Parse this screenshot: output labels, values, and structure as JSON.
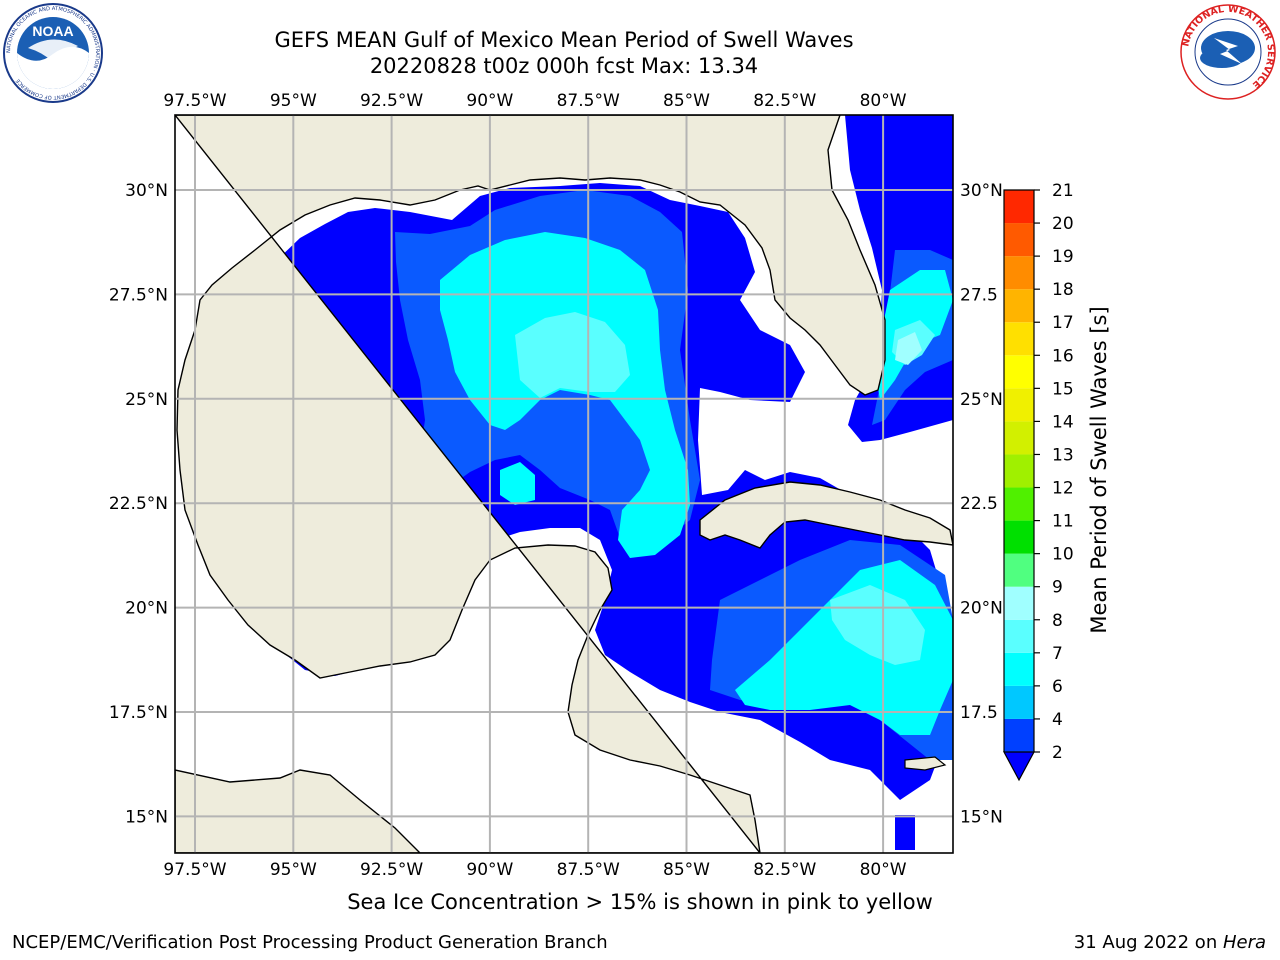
{
  "header": {
    "title_line1": "GEFS MEAN Gulf of Mexico Mean Period of Swell Waves",
    "title_line2": "20220828 t00z 000h fcst   Max: 13.34"
  },
  "logos": {
    "left": "NOAA",
    "left_ring": "NATIONAL OCEANIC AND ATMOSPHERIC ADMINISTRATION · U.S. DEPARTMENT OF COMMERCE",
    "right_ring": "NATIONAL WEATHER SERVICE"
  },
  "map": {
    "lon_labels": [
      "97.5°W",
      "95°W",
      "92.5°W",
      "90°W",
      "87.5°W",
      "85°W",
      "82.5°W",
      "80°W"
    ],
    "lat_labels_left": [
      "30°N",
      "27.5°N",
      "25°N",
      "22.5°N",
      "20°N",
      "17.5°N",
      "15°N"
    ],
    "lat_labels_right": [
      "30°N",
      "27.5",
      "25°N",
      "22.5",
      "20°N",
      "17.5",
      "15°N"
    ],
    "land_color": "#eeecdc",
    "grid_color": "#b4b4b4"
  },
  "colorbar": {
    "label": "Mean Period of Swell Waves [s]",
    "ticks": [
      "2",
      "4",
      "6",
      "7",
      "8",
      "9",
      "10",
      "11",
      "12",
      "13",
      "14",
      "15",
      "16",
      "17",
      "18",
      "19",
      "20",
      "21"
    ],
    "colors": [
      "#0040ff",
      "#00c8ff",
      "#00ffff",
      "#5affff",
      "#a0ffff",
      "#50ff80",
      "#00e000",
      "#50f000",
      "#a0f000",
      "#d2f000",
      "#f0f000",
      "#ffff00",
      "#ffe000",
      "#ffb400",
      "#ff8c00",
      "#ff5a00",
      "#ff2800",
      "#ff0000"
    ],
    "extend_color": "#0000ff"
  },
  "note": "Sea Ice Concentration > 15% is shown in pink to yellow",
  "footer": {
    "left": "NCEP/EMC/Verification Post Processing Product Generation Branch",
    "date": "31 Aug 2022 on ",
    "machine": "Hera"
  }
}
